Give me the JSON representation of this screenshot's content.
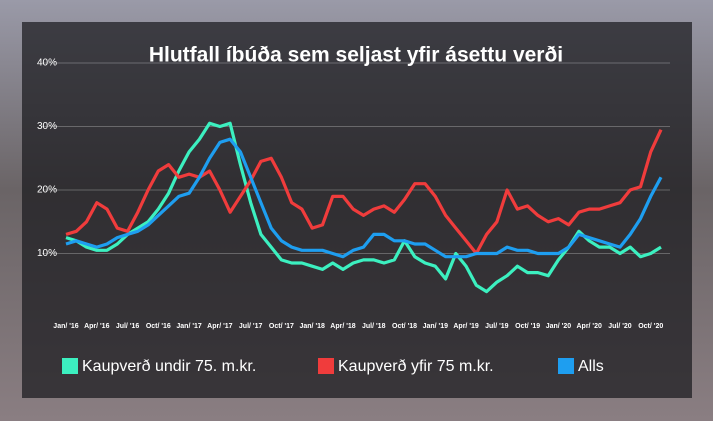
{
  "chart_data": {
    "type": "line",
    "title": "Hlutfall íbúða sem seljast yfir ásettu verði",
    "categories": [
      "Jan/ '16",
      null,
      null,
      "Apr/ '16",
      null,
      null,
      "Jul/ '16",
      null,
      null,
      "Oct/ '16",
      null,
      null,
      "Jan/ '17",
      null,
      null,
      "Apr/ '17",
      null,
      null,
      "Jul/ '17",
      null,
      null,
      "Oct/ '17",
      null,
      null,
      "Jan/ '18",
      null,
      null,
      "Apr/ '18",
      null,
      null,
      "Jul/ '18",
      null,
      null,
      "Oct/ '18",
      null,
      null,
      "Jan/ '19",
      null,
      null,
      "Apr/ '19",
      null,
      null,
      "Jul/ '19",
      null,
      null,
      "Oct/ '19",
      null,
      null,
      "Jan/ '20",
      null,
      null,
      "Apr/ '20",
      null,
      null,
      "Jul/ '20",
      null,
      null,
      "Oct/ '20",
      null
    ],
    "series": [
      {
        "name": "Kaupverð undir 75. m.kr.",
        "color": "#3cf0c0",
        "values": [
          12.5,
          12,
          11,
          10.5,
          10.5,
          11.5,
          13,
          14,
          15,
          17,
          19.5,
          23,
          26,
          28,
          30.5,
          30,
          30.5,
          24,
          18,
          13,
          11,
          9,
          8.5,
          8.5,
          8,
          7.5,
          8.5,
          7.5,
          8.5,
          9,
          9,
          8.5,
          9,
          12,
          9.5,
          8.5,
          8,
          6,
          10,
          8,
          5,
          4,
          5.5,
          6.5,
          8,
          7,
          7,
          6.5,
          9,
          11,
          13.5,
          12,
          11,
          11,
          10,
          11,
          9.5,
          10,
          11
        ]
      },
      {
        "name": "Kaupverð yfir 75 m.kr.",
        "color": "#f03c3c",
        "values": [
          13,
          13.5,
          15,
          18,
          17,
          14,
          13.5,
          16.5,
          20,
          23,
          24,
          22,
          22.5,
          22,
          23,
          20,
          16.5,
          19,
          21.5,
          24.5,
          25,
          22,
          18,
          17,
          14,
          14.5,
          19,
          19,
          17,
          16,
          17,
          17.5,
          16.5,
          18.5,
          21,
          21,
          19,
          16,
          14,
          12,
          10,
          13,
          15,
          20,
          17,
          17.5,
          16,
          15,
          15.5,
          14.5,
          16.5,
          17,
          17,
          17.5,
          18,
          20,
          20.5,
          26,
          29.5
        ]
      },
      {
        "name": "Alls",
        "color": "#1e9ef0",
        "values": [
          11.5,
          12,
          11.5,
          11,
          11.5,
          12.5,
          13,
          13.5,
          14.5,
          16,
          17.5,
          19,
          19.5,
          22,
          25,
          27.5,
          28,
          26,
          22,
          18,
          14,
          12,
          11,
          10.5,
          10.5,
          10.5,
          10,
          9.5,
          10.5,
          11,
          13,
          13,
          12,
          12,
          11.5,
          11.5,
          10.5,
          9.5,
          9.5,
          9.5,
          10,
          10,
          10,
          11,
          10.5,
          10.5,
          10,
          10,
          10,
          11,
          13,
          12.5,
          12,
          11.5,
          11,
          13,
          15.5,
          19,
          22
        ]
      }
    ],
    "ylim": [
      0,
      40
    ],
    "yticks": [
      {
        "value": 10,
        "label": "10%"
      },
      {
        "value": 20,
        "label": "20%"
      },
      {
        "value": 30,
        "label": "30%"
      },
      {
        "value": 40,
        "label": "40%"
      }
    ],
    "grid": true
  }
}
